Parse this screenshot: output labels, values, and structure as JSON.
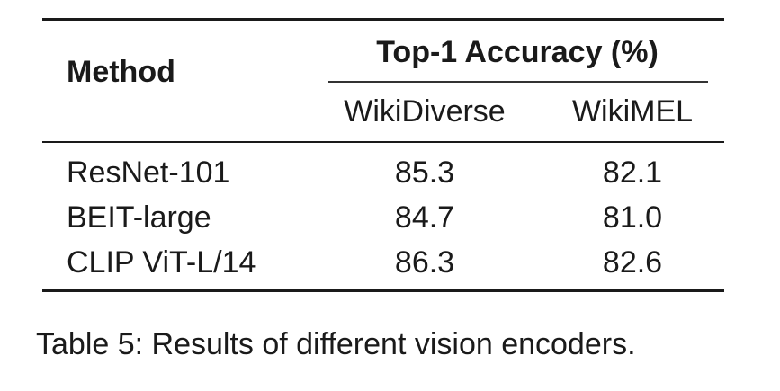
{
  "table": {
    "header": {
      "method": "Method",
      "group": "Top-1 Accuracy (%)",
      "columns": [
        "WikiDiverse",
        "WikiMEL"
      ]
    },
    "rows": [
      {
        "method": "ResNet-101",
        "values": [
          "85.3",
          "82.1"
        ]
      },
      {
        "method": "BEIT-large",
        "values": [
          "84.7",
          "81.0"
        ]
      },
      {
        "method": "CLIP ViT-L/14",
        "values": [
          "86.3",
          "82.6"
        ]
      }
    ]
  },
  "caption": "Table 5: Results of different vision encoders."
}
